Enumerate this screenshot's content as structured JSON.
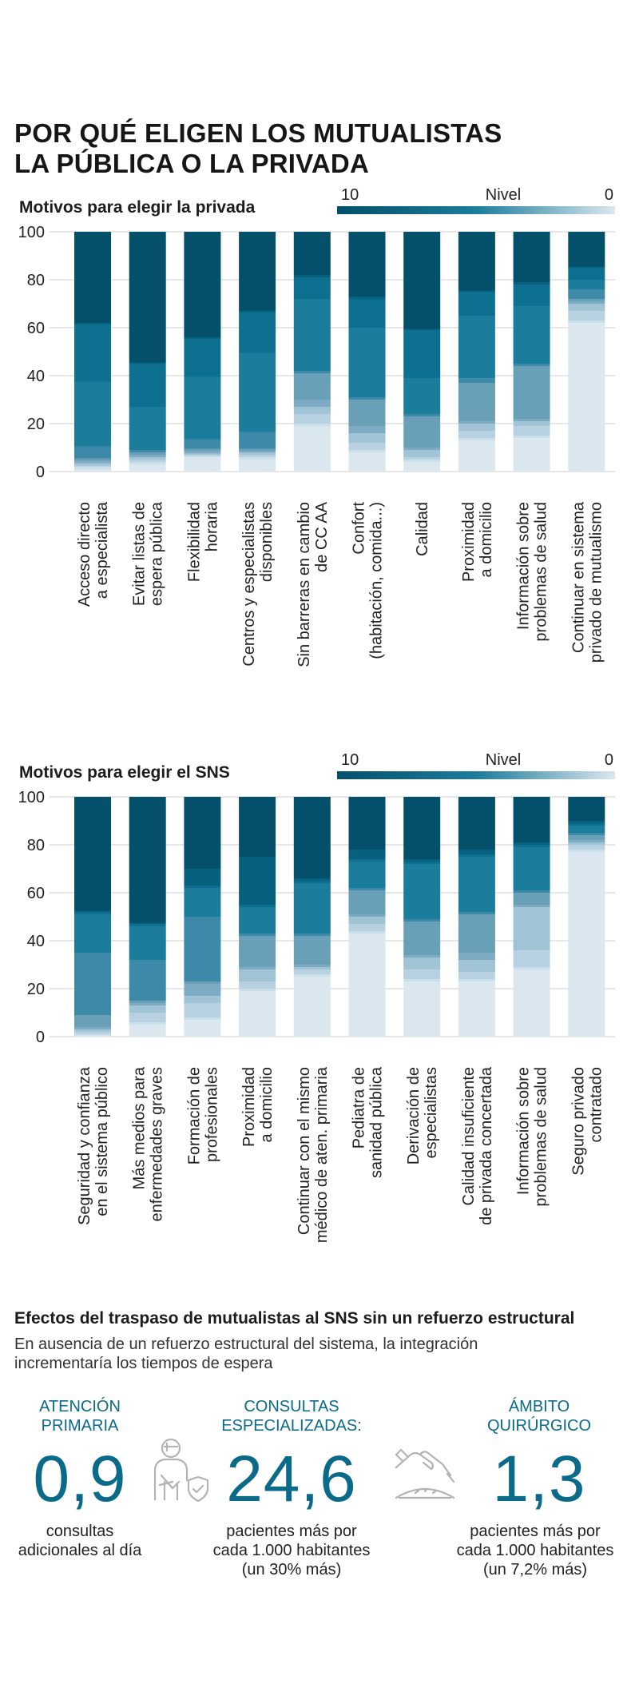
{
  "title": {
    "line1": "POR QUÉ ELIGEN LOS MUTUALISTAS",
    "line2": "LA PÚBLICA O LA PRIVADA"
  },
  "colors": {
    "levels": [
      "#dae7ef",
      "#cbdfea",
      "#b8d1e0",
      "#a0c3d6",
      "#7eabc4",
      "#6a9fb8",
      "#3d8aa8",
      "#1b7c9c",
      "#0e7090",
      "#07607e",
      "#04506b"
    ],
    "gridline": "#cfcfcf",
    "accent": "#0a6a8a"
  },
  "chart_data": [
    {
      "type": "bar",
      "stacked": true,
      "title": "Motivos para elegir la privada",
      "legend": {
        "label": "Nivel",
        "high": "10",
        "low": "0"
      },
      "yticks": [
        "100",
        "80",
        "60",
        "40",
        "20",
        "0"
      ],
      "ylim": [
        0,
        100
      ],
      "categories": [
        [
          "Acceso directo",
          "a especialista"
        ],
        [
          "Evitar listas de",
          "espera pública"
        ],
        [
          "Flexibilidad",
          "horaria"
        ],
        [
          "Centros y especialistas",
          "disponibles"
        ],
        [
          "Sin barreras en cambio",
          "de CC AA"
        ],
        [
          "Confort",
          "(habitación, comida...)"
        ],
        [
          "Calidad"
        ],
        [
          "Proximidad",
          "a domicilio"
        ],
        [
          "Información sobre",
          "problemas de salud"
        ],
        [
          "Continuar en sistema",
          "privado de mutualismo"
        ]
      ],
      "stacks": [
        [
          1,
          1,
          0.5,
          1,
          1,
          1,
          5,
          27,
          24,
          0.5,
          38
        ],
        [
          3,
          1,
          1,
          1,
          1,
          1,
          1,
          18,
          18,
          0.5,
          55
        ],
        [
          6,
          0.5,
          0.5,
          0.5,
          1,
          1,
          4,
          26,
          16,
          0.5,
          45
        ],
        [
          5,
          1,
          1,
          1,
          0.5,
          1,
          7,
          33,
          17,
          0.5,
          35
        ],
        [
          19,
          1,
          4,
          3,
          3,
          11,
          1,
          30,
          9,
          1,
          18
        ],
        [
          8,
          1,
          3,
          4,
          3,
          11,
          1,
          29,
          12,
          1,
          27
        ],
        [
          4,
          1,
          1,
          3,
          1,
          13,
          1,
          15,
          20,
          0.5,
          41
        ],
        [
          13,
          1,
          3,
          3,
          1,
          16,
          2,
          26,
          10,
          0.5,
          25
        ],
        [
          14,
          1,
          4,
          2,
          1,
          22,
          1,
          24,
          9,
          1,
          21
        ],
        [
          62,
          1,
          4,
          3,
          1,
          1,
          4,
          4,
          5,
          0.5,
          14.5
        ]
      ]
    },
    {
      "type": "bar",
      "stacked": true,
      "title": "Motivos para elegir el SNS",
      "legend": {
        "label": "Nivel",
        "high": "10",
        "low": "0"
      },
      "yticks": [
        "100",
        "80",
        "60",
        "40",
        "20",
        "0"
      ],
      "ylim": [
        0,
        100
      ],
      "categories": [
        [
          "Seguridad y confianza",
          "en el sistema público"
        ],
        [
          "Más medios para",
          "enfermedades graves"
        ],
        [
          "Formación de",
          "profesionales"
        ],
        [
          "Proximidad",
          "a domicilio"
        ],
        [
          "Continuar con el mismo",
          "médico de aten. primaria"
        ],
        [
          "Pediatra de",
          "sanidad pública"
        ],
        [
          "Derivación de",
          "especialistas"
        ],
        [
          "Calidad insuficiente",
          "de privada concertada"
        ],
        [
          "Información sobre",
          "problemas de salud"
        ],
        [
          "Seguro privado",
          "contratado"
        ]
      ],
      "stacks": [
        [
          0.5,
          0.5,
          1,
          1,
          1,
          5,
          26,
          16,
          1,
          0.5,
          47.5
        ],
        [
          5,
          1,
          4,
          3,
          1,
          1,
          17,
          14,
          1,
          0.5,
          52.5
        ],
        [
          7,
          1,
          6,
          3,
          5,
          1,
          27,
          12,
          1,
          7,
          30
        ],
        [
          19,
          1,
          3,
          5,
          1,
          13,
          1,
          11,
          1,
          20,
          25
        ],
        [
          25,
          1,
          2,
          1,
          1,
          12,
          1,
          21,
          1,
          1,
          34
        ],
        [
          43,
          1,
          3,
          3,
          1,
          10,
          1,
          11,
          1,
          4,
          22
        ],
        [
          23,
          1,
          4,
          5,
          1,
          14,
          1,
          23,
          1,
          1,
          26
        ],
        [
          23,
          1,
          3,
          5,
          3,
          16,
          1,
          23,
          1,
          2,
          22
        ],
        [
          28,
          1,
          7,
          18,
          1,
          5,
          1,
          18,
          1,
          1,
          19
        ],
        [
          77,
          1,
          2,
          1,
          1,
          2,
          1,
          3,
          1,
          1,
          10
        ]
      ]
    }
  ],
  "effects": {
    "title": "Efectos del traspaso de mutualistas al SNS sin un refuerzo estructural",
    "subtitle_line1": "En ausencia de un refuerzo estructural del sistema, la integración",
    "subtitle_line2": "incrementaría los tiempos de espera",
    "stats": [
      {
        "heading1": "ATENCIÓN",
        "heading2": "PRIMARIA",
        "value": "0,9",
        "desc1": "consultas",
        "desc2": "adicionales al día",
        "desc3": "",
        "icon": "injured-patient-shield-icon"
      },
      {
        "heading1": "CONSULTAS",
        "heading2": "ESPECIALIZADAS:",
        "value": "24,6",
        "desc1": "pacientes más por",
        "desc2": "cada 1.000 habitantes",
        "desc3": "(un 30% más)",
        "icon": "surgeon-hand-scalpel-icon"
      },
      {
        "heading1": "ÁMBITO",
        "heading2": "QUIRÚRGICO",
        "value": "1,3",
        "desc1": "pacientes más por",
        "desc2": "cada 1.000 habitantes",
        "desc3": "(un 7,2% más)",
        "icon": ""
      }
    ]
  }
}
